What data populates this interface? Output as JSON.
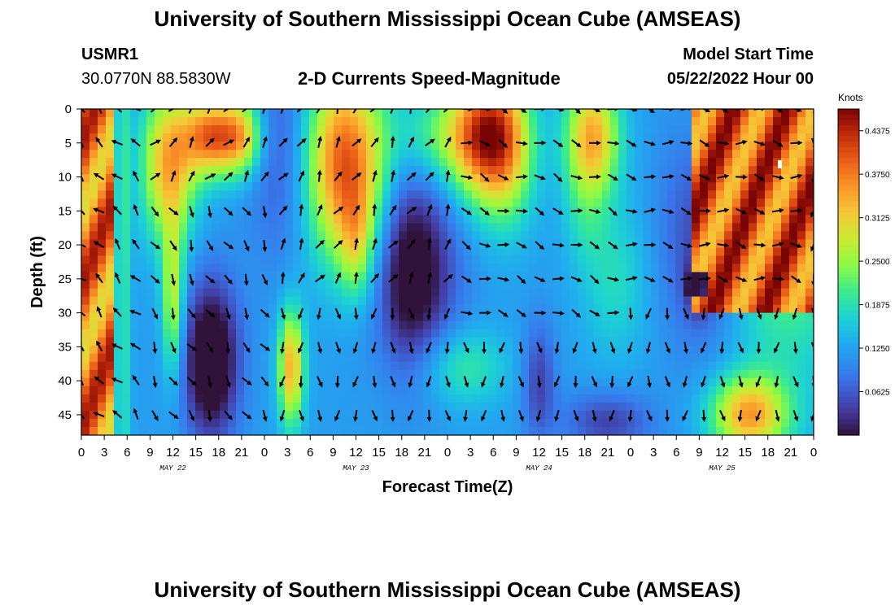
{
  "title": "University of Southern Mississippi Ocean Cube (AMSEAS)",
  "footer_title": "University of Southern Mississippi Ocean Cube (AMSEAS)",
  "station": {
    "id": "USMR1",
    "coords": "30.0770N  88.5830W"
  },
  "model": {
    "label": "Model Start Time",
    "start": "05/22/2022 Hour 00"
  },
  "chart_data": {
    "type": "heatmap",
    "title": "2-D Currents Speed-Magnitude",
    "xlabel": "Forecast Time(Z)",
    "ylabel": "Depth (ft)",
    "xlim": [
      0,
      96
    ],
    "ylim": [
      48,
      0
    ],
    "x_ticks": [
      0,
      3,
      6,
      9,
      12,
      15,
      18,
      21,
      24,
      27,
      30,
      33,
      36,
      39,
      42,
      45,
      48,
      51,
      54,
      57,
      60,
      63,
      66,
      69,
      72,
      75,
      78,
      81,
      84,
      87,
      90,
      93,
      96
    ],
    "x_tick_labels": [
      "0",
      "3",
      "6",
      "9",
      "12",
      "15",
      "18",
      "21",
      "0",
      "3",
      "6",
      "9",
      "12",
      "15",
      "18",
      "21",
      "0",
      "3",
      "6",
      "9",
      "12",
      "15",
      "18",
      "21",
      "0",
      "3",
      "6",
      "9",
      "12",
      "15",
      "18",
      "21",
      "0"
    ],
    "y_ticks": [
      0,
      5,
      10,
      15,
      20,
      25,
      30,
      35,
      40,
      45
    ],
    "y_tick_labels": [
      "0",
      "5",
      "10",
      "15",
      "20",
      "25",
      "30",
      "35",
      "40",
      "45"
    ],
    "date_labels": [
      {
        "label": "MAY 22",
        "hour": 12
      },
      {
        "label": "MAY 23",
        "hour": 36
      },
      {
        "label": "MAY 24",
        "hour": 60
      },
      {
        "label": "MAY 25",
        "hour": 84
      }
    ],
    "colorbar": {
      "title": "Knots",
      "min": 0.0,
      "max": 0.46875,
      "ticks": [
        0.4375,
        0.375,
        0.3125,
        0.25,
        0.1875,
        0.125,
        0.0625
      ],
      "tick_labels": [
        "0.4375",
        "0.3750",
        "0.3125",
        "0.2500",
        "0.1875",
        "0.1250",
        "0.0625"
      ]
    },
    "speed_features": [
      {
        "hour": 1.5,
        "depth": 24,
        "sx": 1.5,
        "sy": 40,
        "value": 0.4
      },
      {
        "hour": 3.6,
        "depth": 24,
        "sx": 0.4,
        "sy": 40,
        "value": -0.3
      },
      {
        "hour": 5.7,
        "depth": 24,
        "sx": 0.6,
        "sy": 40,
        "value": 0.06
      },
      {
        "hour": 11.5,
        "depth": 8,
        "sx": 2.5,
        "sy": 8,
        "value": 0.22
      },
      {
        "hour": 12,
        "depth": 28,
        "sx": 1,
        "sy": 8,
        "value": 0.15
      },
      {
        "hour": 17,
        "depth": 4,
        "sx": 2.5,
        "sy": 4,
        "value": 0.25
      },
      {
        "hour": 21,
        "depth": 4,
        "sx": 2,
        "sy": 4,
        "value": 0.18
      },
      {
        "hour": 17,
        "depth": 37,
        "sx": 2.5,
        "sy": 8,
        "value": -0.18
      },
      {
        "hour": 26,
        "depth": 6,
        "sx": 3,
        "sy": 12,
        "value": -0.06
      },
      {
        "hour": 27.5,
        "depth": 38,
        "sx": 1.2,
        "sy": 6,
        "value": 0.22
      },
      {
        "hour": 34.5,
        "depth": 8,
        "sx": 3.5,
        "sy": 10,
        "value": 0.28
      },
      {
        "hour": 36,
        "depth": 20,
        "sx": 1.5,
        "sy": 6,
        "value": 0.1
      },
      {
        "hour": 39,
        "depth": 20,
        "sx": 2,
        "sy": 12,
        "value": 0.04
      },
      {
        "hour": 43,
        "depth": 24,
        "sx": 4,
        "sy": 10,
        "value": -0.16
      },
      {
        "hour": 49,
        "depth": 4,
        "sx": 5,
        "sy": 5,
        "value": 0.12
      },
      {
        "hour": 53,
        "depth": 4,
        "sx": 3,
        "sy": 7,
        "value": 0.22
      },
      {
        "hour": 56,
        "depth": 6,
        "sx": 2.5,
        "sy": 8,
        "value": 0.12
      },
      {
        "hour": 50,
        "depth": 38,
        "sx": 4,
        "sy": 4,
        "value": 0.08
      },
      {
        "hour": 60,
        "depth": 40,
        "sx": 1.5,
        "sy": 6,
        "value": -0.08
      },
      {
        "hour": 67,
        "depth": 4,
        "sx": 2.5,
        "sy": 6,
        "value": 0.22
      },
      {
        "hour": 66,
        "depth": 15,
        "sx": 2,
        "sy": 6,
        "value": 0.05
      },
      {
        "hour": 70,
        "depth": 25,
        "sx": 3,
        "sy": 8,
        "value": 0.06
      },
      {
        "hour": 69,
        "depth": 46,
        "sx": 4,
        "sy": 3,
        "value": -0.08
      },
      {
        "hour": 82,
        "depth": 18,
        "sx": 4,
        "sy": 12,
        "value": -0.1
      },
      {
        "hour": 81,
        "depth": 26,
        "sx": 1.2,
        "sy": 3,
        "value": -0.1
      },
      {
        "hour": 87.5,
        "depth": 45,
        "sx": 3.5,
        "sy": 4,
        "value": 0.22
      },
      {
        "hour": 92,
        "depth": 6,
        "sx": 6,
        "sy": 20,
        "value": 0.18
      }
    ],
    "regions": [
      {
        "name": "vertical red band",
        "x_range": [
          0,
          4
        ],
        "depth_range": [
          0,
          48
        ],
        "speed_range": [
          0.3,
          0.45
        ]
      },
      {
        "name": "upper-right red block",
        "x_range": [
          80,
          96
        ],
        "depth_range": [
          0,
          30
        ],
        "speed_range": [
          0.32,
          0.47
        ]
      },
      {
        "name": "dark blue core",
        "x_range": [
          79,
          82
        ],
        "depth_range": [
          24,
          28
        ],
        "speed_range": [
          0.0,
          0.04
        ]
      }
    ],
    "vector_grid": {
      "x_step_hours": 2.4,
      "depths": [
        0,
        5,
        10,
        15,
        20,
        25,
        30,
        35,
        40,
        45
      ],
      "angle_fields": [
        {
          "x_range": [
            0,
            8
          ],
          "depth_range": [
            0,
            48
          ],
          "base_angle_deg": 225
        },
        {
          "x_range": [
            8,
            24
          ],
          "depth_range": [
            0,
            15
          ],
          "base_angle_deg": 310
        },
        {
          "x_range": [
            8,
            24
          ],
          "depth_range": [
            15,
            48
          ],
          "base_angle_deg": 60
        },
        {
          "x_range": [
            24,
            48
          ],
          "depth_range": [
            0,
            30
          ],
          "base_angle_deg": 300
        },
        {
          "x_range": [
            24,
            60
          ],
          "depth_range": [
            30,
            48
          ],
          "base_angle_deg": 90
        },
        {
          "x_range": [
            48,
            72
          ],
          "depth_range": [
            0,
            30
          ],
          "base_angle_deg": 20
        },
        {
          "x_range": [
            72,
            96
          ],
          "depth_range": [
            0,
            30
          ],
          "base_angle_deg": 10
        },
        {
          "x_range": [
            72,
            96
          ],
          "depth_range": [
            30,
            48
          ],
          "base_angle_deg": 90
        }
      ]
    }
  }
}
